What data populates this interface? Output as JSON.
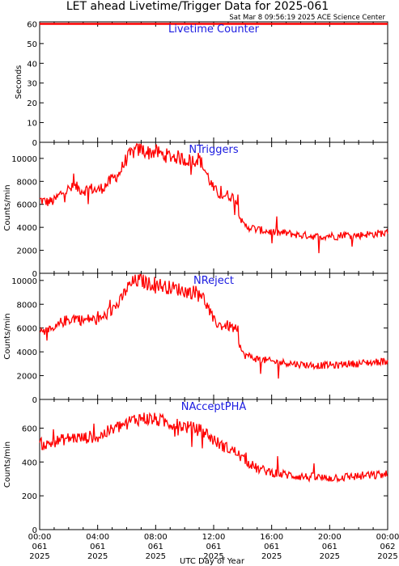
{
  "title": "LET ahead Livetime/Trigger Data for 2025-061",
  "subtitle": "Sat Mar  8 09:56:19 2025 ACE Science Center",
  "xlabel": "UTC Day of Year",
  "colors": {
    "series": "#ff0000",
    "panel_title": "#1a1ae0",
    "axes": "#000000"
  },
  "chart_data": [
    {
      "type": "line",
      "title": "Livetime Counter",
      "ylabel": "Seconds",
      "xlim": [
        0,
        24
      ],
      "ylim": [
        0,
        61
      ],
      "yticks": [
        "0",
        "10",
        "20",
        "30",
        "40",
        "50",
        "60"
      ],
      "series": [
        {
          "x": [
            0,
            24
          ],
          "values": [
            60,
            60
          ]
        }
      ]
    },
    {
      "type": "line",
      "title": "NTriggers",
      "ylabel": "Counts/min",
      "xlim": [
        0,
        24
      ],
      "ylim": [
        0,
        11400
      ],
      "yticks": [
        "0",
        "2000",
        "4000",
        "6000",
        "8000",
        "10000"
      ],
      "series": [
        {
          "x": [
            0,
            0.5,
            1,
            1.5,
            2,
            2.5,
            3,
            3.5,
            4,
            4.5,
            5,
            5.5,
            6,
            6.5,
            7,
            7.5,
            8,
            8.5,
            9,
            9.5,
            10,
            10.5,
            11,
            11.5,
            12,
            12.5,
            13,
            13.5,
            14,
            14.5,
            15,
            15.5,
            16,
            16.5,
            17,
            17.5,
            18,
            18.5,
            19,
            19.5,
            20,
            20.5,
            21,
            21.5,
            22,
            22.5,
            23,
            23.5,
            24
          ],
          "values": [
            6400,
            6200,
            6300,
            7000,
            7300,
            7500,
            7200,
            7400,
            7200,
            7600,
            8200,
            8700,
            10000,
            10600,
            10800,
            10500,
            10600,
            10300,
            10200,
            10100,
            9900,
            9800,
            10000,
            8700,
            7300,
            6800,
            6800,
            6500,
            4200,
            4000,
            3800,
            3700,
            3600,
            3500,
            3500,
            3400,
            3300,
            3300,
            3200,
            3200,
            3300,
            3200,
            3400,
            3300,
            3300,
            3400,
            3400,
            3500,
            3500
          ]
        }
      ]
    },
    {
      "type": "line",
      "title": "NReject",
      "ylabel": "Counts/min",
      "xlim": [
        0,
        24
      ],
      "ylim": [
        0,
        10600
      ],
      "yticks": [
        "0",
        "2000",
        "4000",
        "6000",
        "8000",
        "10000"
      ],
      "series": [
        {
          "x": [
            0,
            0.5,
            1,
            1.5,
            2,
            2.5,
            3,
            3.5,
            4,
            4.5,
            5,
            5.5,
            6,
            6.5,
            7,
            7.5,
            8,
            8.5,
            9,
            9.5,
            10,
            10.5,
            11,
            11.5,
            12,
            12.5,
            13,
            13.5,
            14,
            14.5,
            15,
            15.5,
            16,
            16.5,
            17,
            17.5,
            18,
            18.5,
            19,
            19.5,
            20,
            20.5,
            21,
            21.5,
            22,
            22.5,
            23,
            23.5,
            24
          ],
          "values": [
            6000,
            5700,
            5800,
            6500,
            6700,
            6900,
            6600,
            6800,
            6600,
            7000,
            7600,
            8100,
            9300,
            9900,
            10000,
            9700,
            9800,
            9500,
            9400,
            9300,
            9100,
            9000,
            9200,
            8000,
            6600,
            6200,
            6200,
            5900,
            3800,
            3600,
            3400,
            3300,
            3200,
            3100,
            3100,
            3000,
            2950,
            2900,
            2850,
            2850,
            2900,
            2850,
            3000,
            3000,
            3000,
            3100,
            3100,
            3200,
            3200
          ]
        }
      ]
    },
    {
      "type": "line",
      "title": "NAcceptPHA",
      "ylabel": "Counts/min",
      "xlim": [
        0,
        24
      ],
      "ylim": [
        0,
        770
      ],
      "yticks": [
        "0",
        "200",
        "400",
        "600"
      ],
      "xticks": [
        {
          "time": "00:00",
          "doy": "061",
          "year": "2025"
        },
        {
          "time": "04:00",
          "doy": "061",
          "year": "2025"
        },
        {
          "time": "08:00",
          "doy": "061",
          "year": "2025"
        },
        {
          "time": "12:00",
          "doy": "061",
          "year": "2025"
        },
        {
          "time": "16:00",
          "doy": "061",
          "year": "2025"
        },
        {
          "time": "20:00",
          "doy": "061",
          "year": "2025"
        },
        {
          "time": "00:00",
          "doy": "062",
          "year": "2025"
        }
      ],
      "series": [
        {
          "x": [
            0,
            0.5,
            1,
            1.5,
            2,
            2.5,
            3,
            3.5,
            4,
            4.5,
            5,
            5.5,
            6,
            6.5,
            7,
            7.5,
            8,
            8.5,
            9,
            9.5,
            10,
            10.5,
            11,
            11.5,
            12,
            12.5,
            13,
            13.5,
            14,
            14.5,
            15,
            15.5,
            16,
            16.5,
            17,
            17.5,
            18,
            18.5,
            19,
            19.5,
            20,
            20.5,
            21,
            21.5,
            22,
            22.5,
            23,
            23.5,
            24
          ],
          "values": [
            510,
            500,
            520,
            530,
            540,
            545,
            540,
            550,
            545,
            570,
            590,
            610,
            630,
            650,
            660,
            655,
            650,
            640,
            630,
            620,
            610,
            600,
            590,
            570,
            530,
            500,
            480,
            460,
            420,
            390,
            360,
            350,
            340,
            330,
            325,
            320,
            315,
            310,
            310,
            305,
            305,
            310,
            310,
            315,
            315,
            320,
            320,
            325,
            325
          ]
        }
      ]
    }
  ]
}
